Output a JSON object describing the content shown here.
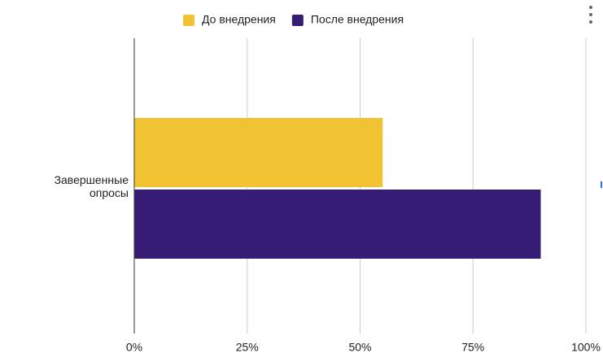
{
  "chart_data": {
    "type": "bar",
    "orientation": "horizontal",
    "categories": [
      "Завершенные опросы"
    ],
    "series": [
      {
        "name": "До внедрения",
        "color": "#f1c232",
        "values": [
          55
        ]
      },
      {
        "name": "После внедрения",
        "color": "#371c76",
        "values": [
          90
        ]
      }
    ],
    "xlim": [
      0,
      100
    ],
    "xticks": [
      {
        "value": 0,
        "label": "0%"
      },
      {
        "value": 25,
        "label": "25%"
      },
      {
        "value": 50,
        "label": "50%"
      },
      {
        "value": 75,
        "label": "75%"
      },
      {
        "value": 100,
        "label": "100%"
      }
    ],
    "grid": true,
    "legend": "top"
  }
}
